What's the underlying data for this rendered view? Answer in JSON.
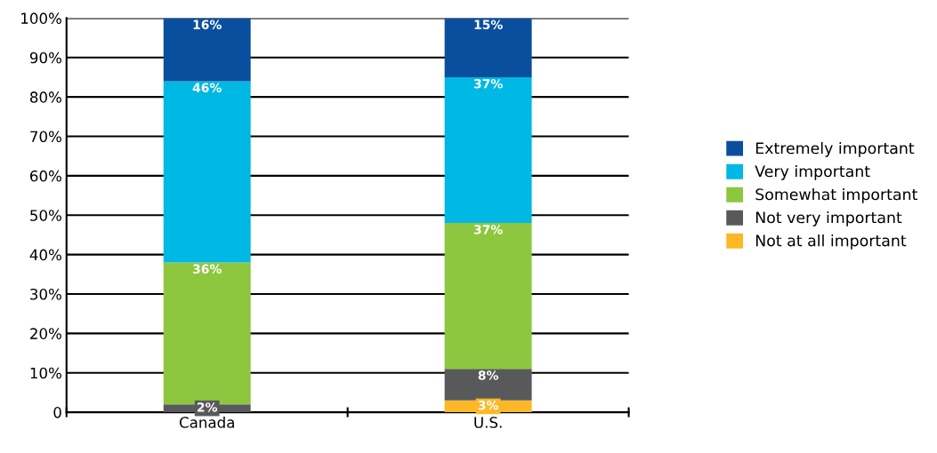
{
  "chart_data": {
    "type": "bar",
    "stacked": true,
    "categories": [
      "Canada",
      "U.S."
    ],
    "series": [
      {
        "name": "Not at all important",
        "color": "#fdb827",
        "values": [
          0,
          3
        ],
        "value_labels": [
          null,
          "3%"
        ]
      },
      {
        "name": "Not very important",
        "color": "#58595b",
        "values": [
          2,
          8
        ],
        "value_labels": [
          "2%",
          "8%"
        ]
      },
      {
        "name": "Somewhat important",
        "color": "#8dc63f",
        "values": [
          36,
          37
        ],
        "value_labels": [
          "36%",
          "37%"
        ]
      },
      {
        "name": "Very important",
        "color": "#00b8e4",
        "values": [
          46,
          37
        ],
        "value_labels": [
          "46%",
          "37%"
        ]
      },
      {
        "name": "Extremely important",
        "color": "#0a4f9e",
        "values": [
          16,
          15
        ],
        "value_labels": [
          "16%",
          "15%"
        ]
      }
    ],
    "ylim": [
      0,
      100
    ],
    "yticks": [
      {
        "value": 0,
        "label": "0"
      },
      {
        "value": 10,
        "label": "10%"
      },
      {
        "value": 20,
        "label": "20%"
      },
      {
        "value": 30,
        "label": "30%"
      },
      {
        "value": 40,
        "label": "40%"
      },
      {
        "value": 50,
        "label": "50%"
      },
      {
        "value": 60,
        "label": "60%"
      },
      {
        "value": 70,
        "label": "70%"
      },
      {
        "value": 80,
        "label": "80%"
      },
      {
        "value": 90,
        "label": "90%"
      },
      {
        "value": 100,
        "label": "100%"
      }
    ],
    "grid": "y",
    "legend": "right"
  }
}
